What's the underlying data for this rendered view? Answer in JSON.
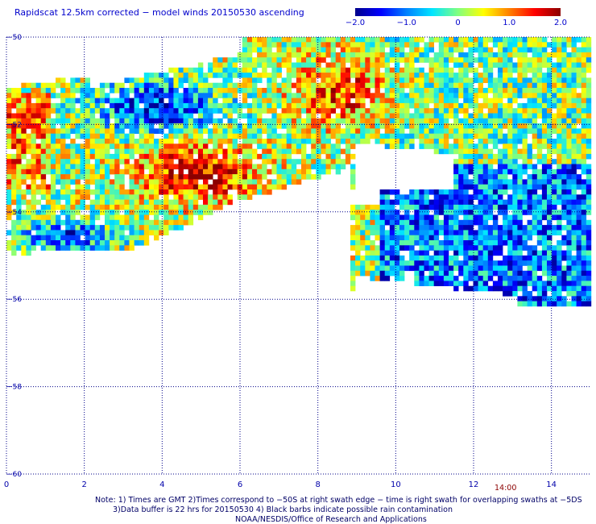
{
  "title": "Rapidscat 12.5km corrected − model winds 20150530 ascending",
  "colorbar": {
    "min": -2.0,
    "max": 2.0,
    "tick_labels": [
      "−2.0",
      "−1.0",
      "0",
      "1.0",
      "2.0"
    ],
    "tick_values": [
      -2.0,
      -1.0,
      0,
      1.0,
      2.0
    ],
    "colors": [
      "#00008b",
      "#0000ff",
      "#0080ff",
      "#00e5ff",
      "#80ff80",
      "#ffff00",
      "#ff8000",
      "#ff0000",
      "#8b0000"
    ]
  },
  "chart_data": {
    "type": "heatmap",
    "title": "Rapidscat 12.5km corrected − model winds 20150530 ascending",
    "xlabel": "",
    "ylabel": "",
    "xlim": [
      0,
      15
    ],
    "ylim": [
      -60,
      -50
    ],
    "x_ticks": [
      0,
      2,
      4,
      6,
      8,
      10,
      12,
      14
    ],
    "y_ticks": [
      -50,
      -52,
      -54,
      -56,
      -58,
      -60
    ],
    "y_tick_labels": [
      "−50",
      "−52",
      "−54",
      "−56",
      "−58",
      "−60"
    ],
    "x_tick_labels": [
      "0",
      "2",
      "4",
      "6",
      "8",
      "10",
      "12",
      "14"
    ],
    "grid": true,
    "value_range": [
      -2.0,
      2.0
    ],
    "regions": [
      {
        "name": "blue band",
        "value": -1.5
      },
      {
        "name": "red core",
        "value": 1.8
      },
      {
        "name": "green fringe",
        "value": 0.2
      },
      {
        "name": "eastern swath",
        "value": -0.6
      }
    ],
    "annotation": "14:00"
  },
  "notes": {
    "line1": "Note: 1) Times are GMT 2)Times correspond to −50S at right swath edge − time is right swath for overlapping swaths at −5DS",
    "line2": "3)Data buffer is 22 hrs for 20150530 4) Black barbs indicate possible rain contamination",
    "credit": "NOAA/NESDIS/Office of Research and Applications"
  }
}
